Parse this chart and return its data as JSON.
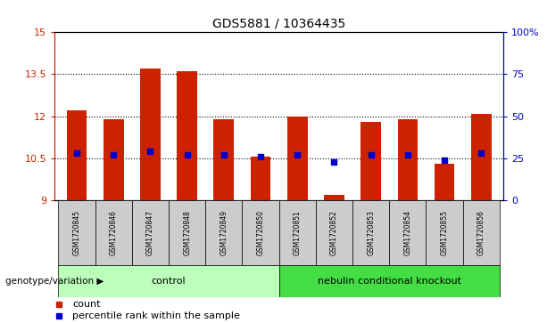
{
  "title": "GDS5881 / 10364435",
  "samples": [
    "GSM1720845",
    "GSM1720846",
    "GSM1720847",
    "GSM1720848",
    "GSM1720849",
    "GSM1720850",
    "GSM1720851",
    "GSM1720852",
    "GSM1720853",
    "GSM1720854",
    "GSM1720855",
    "GSM1720856"
  ],
  "bar_bottoms": [
    9,
    9,
    9,
    9,
    9,
    9,
    9,
    9,
    9,
    9,
    9,
    9
  ],
  "bar_tops": [
    12.2,
    11.9,
    13.7,
    13.6,
    11.9,
    10.55,
    12.0,
    9.2,
    11.8,
    11.9,
    10.3,
    12.1
  ],
  "percentile_ranks": [
    28,
    27,
    29,
    27,
    27,
    26,
    27,
    23,
    27,
    27,
    24,
    28
  ],
  "ylim": [
    9,
    15
  ],
  "yticks_left": [
    9,
    10.5,
    12,
    13.5,
    15
  ],
  "ytick_labels_left": [
    "9",
    "10.5",
    "12",
    "13.5",
    "15"
  ],
  "yticks_right": [
    0,
    25,
    50,
    75,
    100
  ],
  "ytick_labels_right": [
    "0",
    "25",
    "50",
    "75",
    "100%"
  ],
  "bar_color": "#cc2200",
  "dot_color": "#0000cc",
  "grid_color": "#000000",
  "axis_label_color_left": "#cc2200",
  "axis_label_color_right": "#0000cc",
  "control_n": 6,
  "knockout_n": 6,
  "control_label": "control",
  "knockout_label": "nebulin conditional knockout",
  "control_color": "#bbffbb",
  "knockout_color": "#44dd44",
  "group_label": "genotype/variation",
  "legend_count_label": "count",
  "legend_percentile_label": "percentile rank within the sample",
  "bg_color": "#ffffff",
  "tick_area_bg": "#cccccc"
}
